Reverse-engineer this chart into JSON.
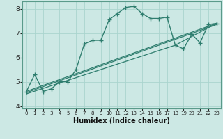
{
  "xlabel": "Humidex (Indice chaleur)",
  "background_color": "#cce8e4",
  "line_color": "#2e7d6e",
  "grid_color": "#aad4ce",
  "xlim": [
    -0.5,
    23.5
  ],
  "ylim": [
    3.9,
    8.3
  ],
  "yticks": [
    4,
    5,
    6,
    7,
    8
  ],
  "xticks": [
    0,
    1,
    2,
    3,
    4,
    5,
    6,
    7,
    8,
    9,
    10,
    11,
    12,
    13,
    14,
    15,
    16,
    17,
    18,
    19,
    20,
    21,
    22,
    23
  ],
  "series1_x": [
    0,
    1,
    2,
    3,
    4,
    5,
    6,
    7,
    8,
    9,
    10,
    11,
    12,
    13,
    14,
    15,
    16,
    17,
    18,
    19,
    20,
    21,
    22,
    23
  ],
  "series1_y": [
    4.6,
    5.3,
    4.6,
    4.7,
    5.0,
    5.0,
    5.5,
    6.55,
    6.7,
    6.7,
    7.55,
    7.8,
    8.05,
    8.1,
    7.8,
    7.6,
    7.6,
    7.65,
    6.5,
    6.35,
    6.95,
    6.6,
    7.35,
    7.4
  ],
  "series2_x": [
    0,
    23
  ],
  "series2_y": [
    4.6,
    7.4
  ],
  "series3_x": [
    0,
    23
  ],
  "series3_y": [
    4.55,
    7.35
  ],
  "series4_x": [
    0,
    18,
    23
  ],
  "series4_y": [
    4.5,
    6.5,
    7.4
  ]
}
